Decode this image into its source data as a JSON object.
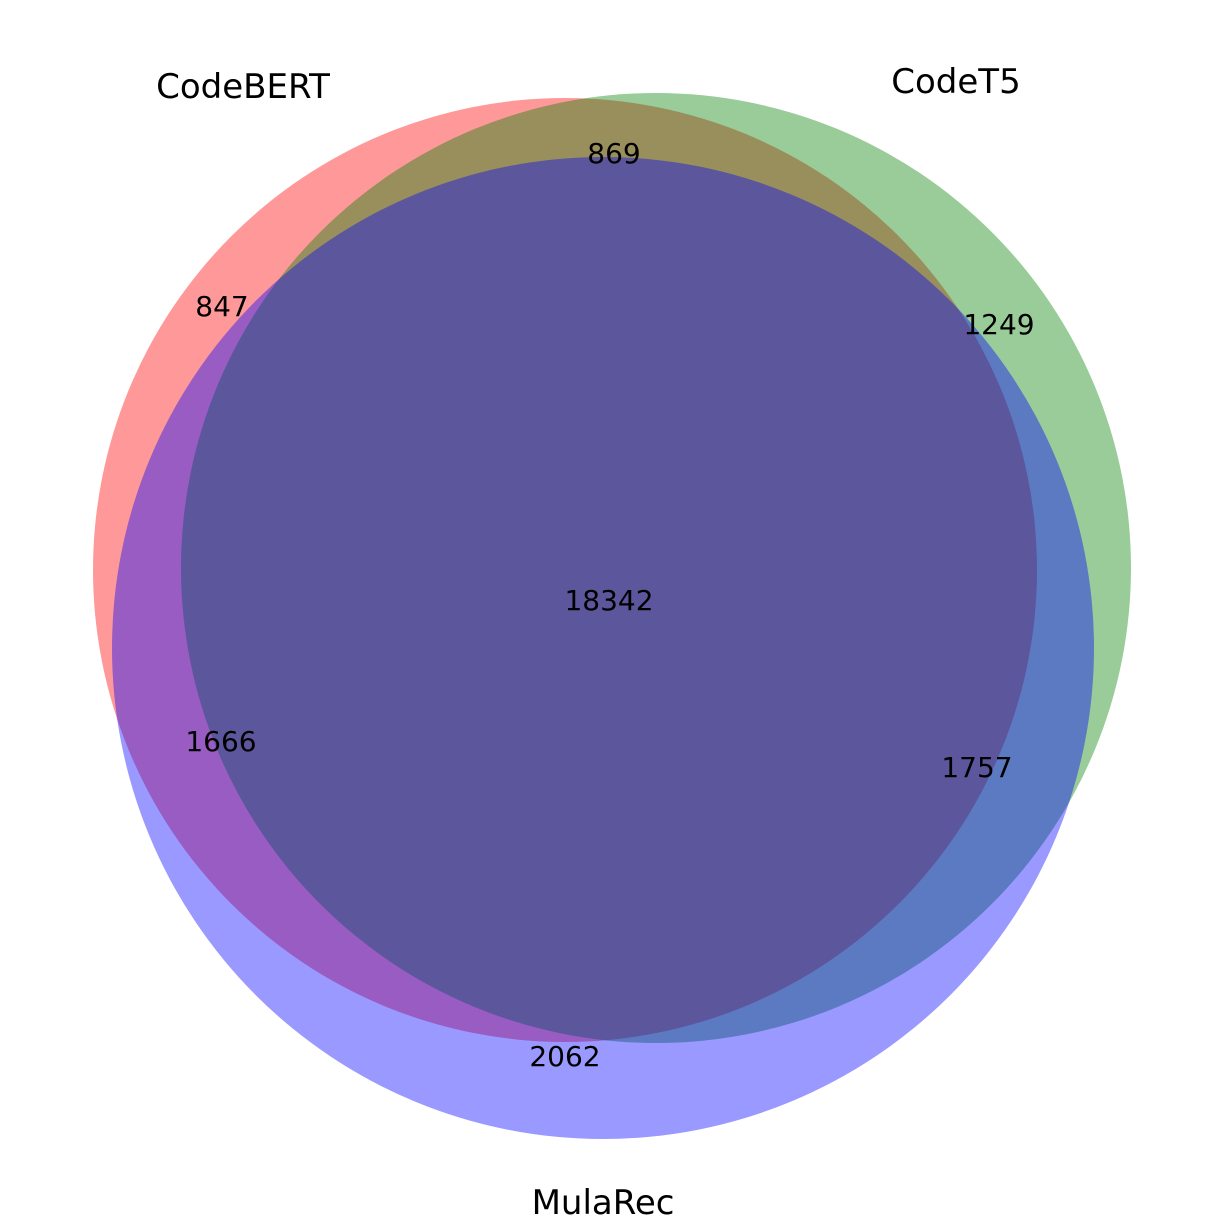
{
  "chart_data": {
    "type": "venn3",
    "sets": [
      {
        "name": "CodeBERT",
        "color": "#ff0000",
        "opacity": 0.4
      },
      {
        "name": "CodeT5",
        "color": "#008000",
        "opacity": 0.4
      },
      {
        "name": "MulaRec",
        "color": "#0000ff",
        "opacity": 0.4
      }
    ],
    "regions": {
      "CodeBERT_only": "847",
      "CodeT5_only": "1249",
      "MulaRec_only": "2062",
      "CodeBERT_CodeT5": "869",
      "CodeBERT_MulaRec": "1666",
      "CodeT5_MulaRec": "1757",
      "all_three": "18342"
    }
  }
}
